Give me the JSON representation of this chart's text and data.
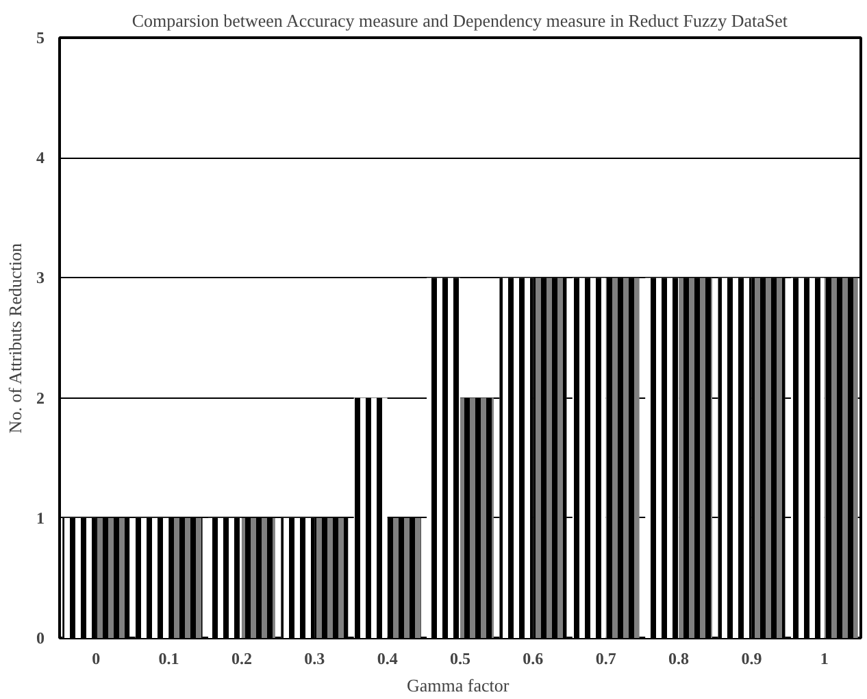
{
  "chart_data": {
    "type": "bar",
    "title": "Comparsion between Accuracy measure and Dependency measure in Reduct Fuzzy DataSet",
    "xlabel": "Gamma  factor",
    "ylabel": "No. of Attributs Reduction",
    "categories": [
      "0",
      "0.1",
      "0.2",
      "0.3",
      "0.4",
      "0.5",
      "0.6",
      "0.7",
      "0.8",
      "0.9",
      "1"
    ],
    "series": [
      {
        "color": "#000000",
        "values": [
          1,
          1,
          1,
          1,
          2,
          3,
          3,
          3,
          3,
          3,
          3
        ]
      },
      {
        "color": "#808080",
        "values": [
          1,
          1,
          1,
          1,
          1,
          2,
          3,
          3,
          3,
          3,
          3
        ]
      }
    ],
    "ylim": [
      0,
      5
    ],
    "yticks": [
      0,
      1,
      2,
      3,
      4,
      5
    ],
    "grid": "y"
  }
}
